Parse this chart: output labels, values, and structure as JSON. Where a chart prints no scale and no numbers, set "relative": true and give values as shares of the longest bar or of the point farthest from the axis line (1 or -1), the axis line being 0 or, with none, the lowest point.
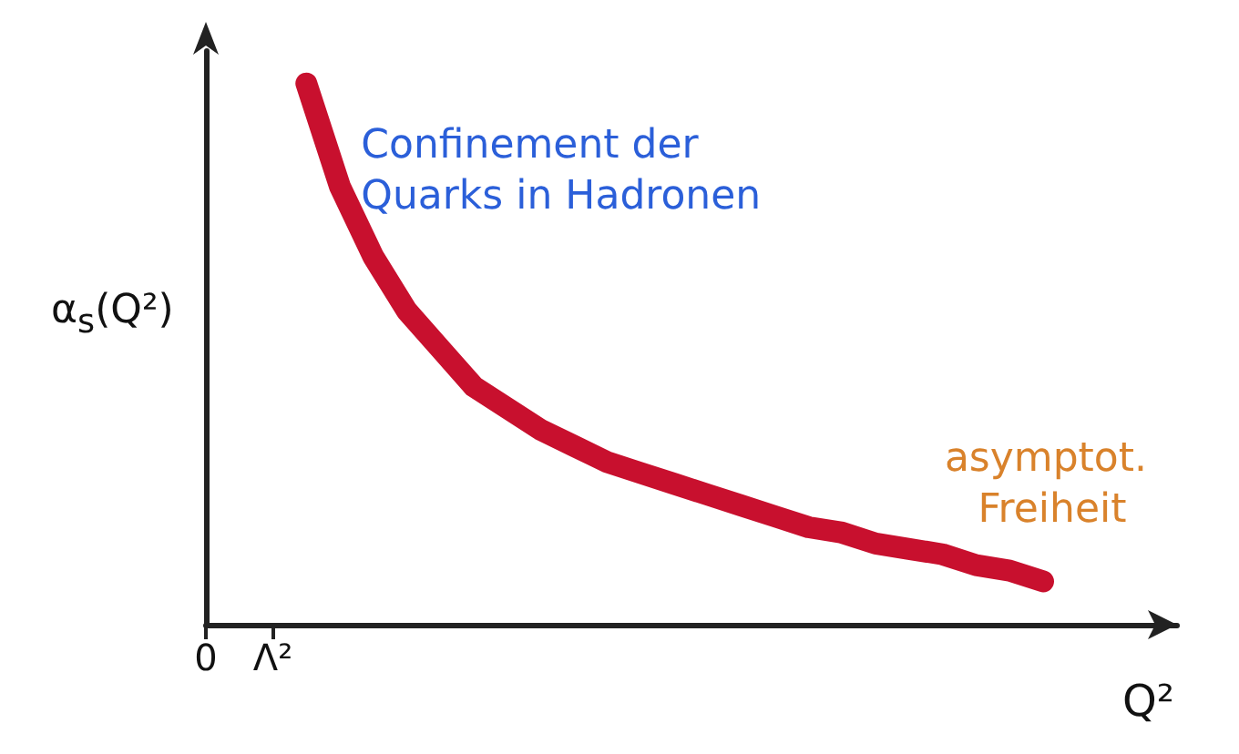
{
  "chart_data": {
    "type": "line",
    "relative": true,
    "grid": false,
    "line_style": "solid",
    "ylabel": "α$_{s}$(Q²)",
    "xlabel": "Q²",
    "categories": [
      "0",
      null,
      "Λ²",
      null,
      null,
      null,
      null,
      null,
      null,
      null,
      null,
      null,
      null,
      null,
      null,
      null,
      null,
      null,
      null,
      null,
      null,
      null,
      null,
      null,
      null,
      null,
      null,
      null,
      null,
      null
    ],
    "series": [
      {
        "color": "#c8102e",
        "values": [
          null,
          null,
          null,
          1,
          0.81,
          0.68,
          0.58,
          0.51,
          0.44,
          0.4,
          0.36,
          0.33,
          0.3,
          0.28,
          0.26,
          0.24,
          0.22,
          0.2,
          0.18,
          0.17,
          0.15,
          0.14,
          0.13,
          0.11,
          0.1,
          0.08,
          null,
          null,
          null,
          null
        ]
      }
    ],
    "annotations": [
      "Confinement der Quarks in Hadronen",
      "asymptot. Freiheit"
    ]
  }
}
